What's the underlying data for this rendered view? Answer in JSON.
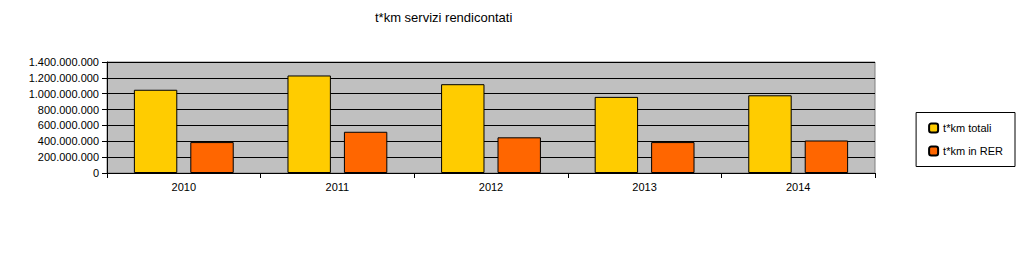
{
  "chart_data": {
    "type": "bar",
    "title": "t*km servizi rendicontati",
    "categories": [
      "2010",
      "2011",
      "2012",
      "2013",
      "2014"
    ],
    "series": [
      {
        "name": "t*km totali",
        "color": "#FFCC00",
        "values": [
          1050000000,
          1230000000,
          1120000000,
          960000000,
          980000000
        ]
      },
      {
        "name": "t*km in RER",
        "color": "#FF6600",
        "values": [
          390000000,
          520000000,
          450000000,
          390000000,
          410000000
        ]
      }
    ],
    "ylim": [
      0,
      1400000000
    ],
    "yticks": [
      0,
      {
        "value": 200000000,
        "label": "200.000.000"
      },
      {
        "value": 400000000,
        "label": "400.000.000"
      },
      {
        "value": 600000000,
        "label": "600.000.000"
      },
      {
        "value": 800000000,
        "label": "800.000.000"
      },
      {
        "value": 1000000000,
        "label": "1.000.000.000"
      },
      {
        "value": 1200000000,
        "label": "1.200.000.000"
      },
      {
        "value": 1400000000,
        "label": "1.400.000.000"
      }
    ],
    "grid": true,
    "legend": "right"
  }
}
